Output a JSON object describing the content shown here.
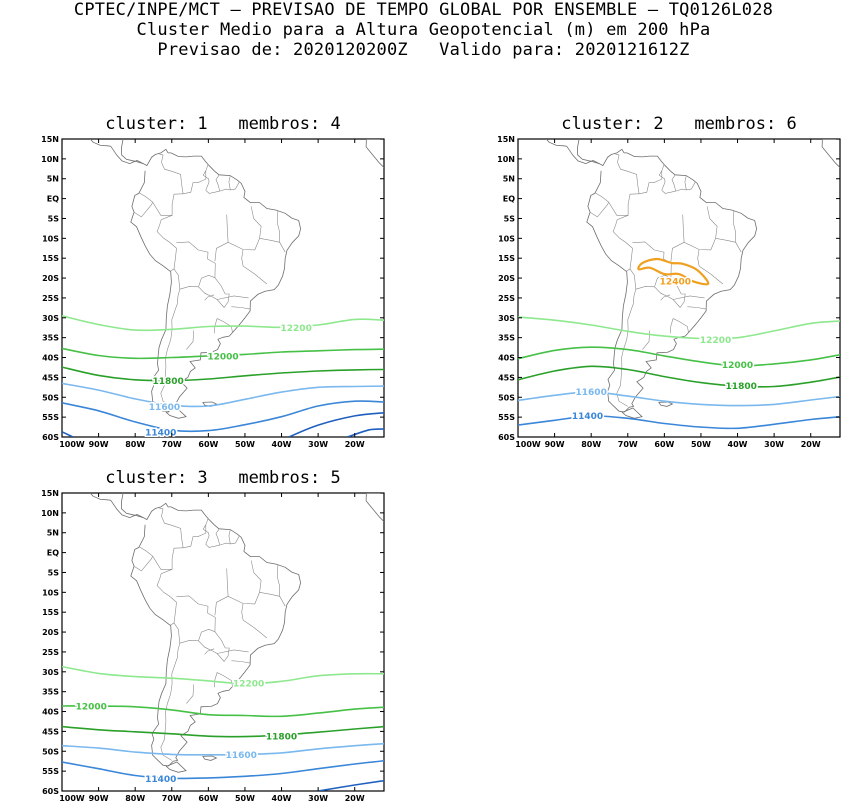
{
  "header": {
    "line1": "CPTEC/INPE/MCT – PREVISAO DE TEMPO GLOBAL POR ENSEMBLE – TQ0126L028",
    "line2": "Cluster Medio para a Altura Geopotencial (m) em 200 hPa",
    "line3": "Previsao de: 2020120200Z   Valido para: 2020121612Z"
  },
  "colors": {
    "c11400": "#3a86d8",
    "c11600": "#7ab8ee",
    "c11800": "#2aa02a",
    "c12000": "#46c046",
    "c12200": "#8ee88e",
    "c12400": "#f0a020",
    "cdark": "#1f5fbf",
    "coast": "#6e6e6e"
  },
  "axes": {
    "lon_ticks": [
      "100W",
      "90W",
      "80W",
      "70W",
      "60W",
      "50W",
      "40W",
      "30W",
      "20W"
    ],
    "lat_ticks": [
      "15N",
      "10N",
      "5N",
      "EQ",
      "5S",
      "10S",
      "15S",
      "20S",
      "25S",
      "30S",
      "35S",
      "40S",
      "45S",
      "50S",
      "55S",
      "60S"
    ]
  },
  "panels": [
    {
      "title": "cluster: 1   membros: 4",
      "contours": [
        {
          "level": 12200,
          "label": "12200",
          "color": "c12200",
          "pts": [
            [
              -100,
              -29.5
            ],
            [
              -90,
              -31.7
            ],
            [
              -80,
              -33.1
            ],
            [
              -70,
              -32.9
            ],
            [
              -60,
              -32.2
            ],
            [
              -50,
              -32.1
            ],
            [
              -40,
              -32.4
            ],
            [
              -30,
              -31.8
            ],
            [
              -20,
              -30.4
            ],
            [
              -12,
              -30.6
            ]
          ],
          "labelAt": [
            -36,
            -32.5
          ]
        },
        {
          "level": 12000,
          "label": "12000",
          "color": "c12000",
          "pts": [
            [
              -100,
              -37.7
            ],
            [
              -90,
              -39.5
            ],
            [
              -80,
              -40.2
            ],
            [
              -70,
              -40.0
            ],
            [
              -60,
              -39.6
            ],
            [
              -50,
              -39.2
            ],
            [
              -40,
              -38.6
            ],
            [
              -30,
              -38.3
            ],
            [
              -20,
              -38.0
            ],
            [
              -12,
              -37.9
            ]
          ],
          "labelAt": [
            -56,
            -39.6
          ]
        },
        {
          "level": 11800,
          "label": "11800",
          "color": "c11800",
          "pts": [
            [
              -100,
              -42.4
            ],
            [
              -90,
              -44.5
            ],
            [
              -80,
              -45.6
            ],
            [
              -70,
              -45.8
            ],
            [
              -60,
              -45.4
            ],
            [
              -50,
              -44.6
            ],
            [
              -40,
              -43.9
            ],
            [
              -30,
              -43.4
            ],
            [
              -20,
              -43.1
            ],
            [
              -12,
              -43.0
            ]
          ],
          "labelAt": [
            -71,
            -45.8
          ]
        },
        {
          "level": 11600,
          "label": "11600",
          "color": "c11600",
          "pts": [
            [
              -100,
              -46.5
            ],
            [
              -90,
              -48.2
            ],
            [
              -80,
              -50.4
            ],
            [
              -70,
              -52.0
            ],
            [
              -60,
              -52.2
            ],
            [
              -50,
              -50.5
            ],
            [
              -40,
              -48.7
            ],
            [
              -30,
              -47.5
            ],
            [
              -20,
              -47.3
            ],
            [
              -12,
              -47.2
            ]
          ],
          "labelAt": [
            -72,
            -52.3
          ]
        },
        {
          "level": 11400,
          "label": "11400",
          "color": "c11400",
          "pts": [
            [
              -100,
              -51.4
            ],
            [
              -90,
              -53.4
            ],
            [
              -80,
              -56.2
            ],
            [
              -70,
              -58.3
            ],
            [
              -60,
              -58.4
            ],
            [
              -50,
              -56.9
            ],
            [
              -40,
              -54.9
            ],
            [
              -30,
              -52.2
            ],
            [
              -20,
              -51.0
            ],
            [
              -12,
              -51.2
            ]
          ],
          "labelAt": [
            -73,
            -58.8
          ]
        },
        {
          "level": 11200,
          "label": "",
          "color": "cdark",
          "pts": [
            [
              -100,
              -58.7
            ],
            [
              -97,
              -60
            ]
          ],
          "labelAt": null
        },
        {
          "level": 11200,
          "label": "",
          "color": "cdark",
          "pts": [
            [
              -38,
              -60
            ],
            [
              -30,
              -57.0
            ],
            [
              -20,
              -54.7
            ],
            [
              -12,
              -53.9
            ]
          ],
          "labelAt": null
        },
        {
          "level": 11000,
          "label": "",
          "color": "cdark",
          "pts": [
            [
              -22,
              -60
            ],
            [
              -16,
              -58.2
            ],
            [
              -12,
              -58.0
            ]
          ],
          "labelAt": null
        }
      ]
    },
    {
      "title": "cluster: 2   membros: 6",
      "contours": [
        {
          "level": 12400,
          "label": "12400",
          "color": "c12400",
          "closed": true,
          "pts": [
            [
              -66,
              -16.2
            ],
            [
              -62,
              -15.2
            ],
            [
              -58,
              -16.2
            ],
            [
              -55,
              -16.4
            ],
            [
              -51,
              -18.0
            ],
            [
              -48,
              -21.4
            ],
            [
              -52,
              -20.9
            ],
            [
              -56,
              -19.0
            ],
            [
              -60,
              -19.0
            ],
            [
              -64,
              -17.4
            ],
            [
              -67,
              -17.8
            ]
          ],
          "labelAt": [
            -57,
            -20.8
          ]
        },
        {
          "level": 12200,
          "label": "12200",
          "color": "c12200",
          "pts": [
            [
              -100,
              -29.8
            ],
            [
              -90,
              -30.6
            ],
            [
              -80,
              -31.8
            ],
            [
              -70,
              -33.4
            ],
            [
              -60,
              -34.6
            ],
            [
              -50,
              -35.2
            ],
            [
              -40,
              -35.0
            ],
            [
              -30,
              -33.3
            ],
            [
              -20,
              -31.4
            ],
            [
              -12,
              -30.8
            ]
          ],
          "labelAt": [
            -46,
            -35.4
          ]
        },
        {
          "level": 12000,
          "label": "12000",
          "color": "c12000",
          "pts": [
            [
              -100,
              -40.3
            ],
            [
              -90,
              -38.2
            ],
            [
              -80,
              -37.4
            ],
            [
              -70,
              -38.0
            ],
            [
              -60,
              -39.6
            ],
            [
              -50,
              -41.1
            ],
            [
              -40,
              -42.1
            ],
            [
              -30,
              -41.6
            ],
            [
              -20,
              -40.6
            ],
            [
              -12,
              -39.3
            ]
          ],
          "labelAt": [
            -40,
            -41.8
          ]
        },
        {
          "level": 11800,
          "label": "11800",
          "color": "c11800",
          "pts": [
            [
              -100,
              -45.6
            ],
            [
              -90,
              -43.4
            ],
            [
              -80,
              -42.2
            ],
            [
              -70,
              -43.0
            ],
            [
              -60,
              -44.8
            ],
            [
              -50,
              -46.3
            ],
            [
              -40,
              -47.2
            ],
            [
              -30,
              -47.3
            ],
            [
              -20,
              -46.2
            ],
            [
              -12,
              -44.9
            ]
          ],
          "labelAt": [
            -39,
            -47.0
          ]
        },
        {
          "level": 11600,
          "label": "11600",
          "color": "c11600",
          "pts": [
            [
              -100,
              -50.8
            ],
            [
              -90,
              -49.5
            ],
            [
              -80,
              -48.7
            ],
            [
              -70,
              -49.7
            ],
            [
              -60,
              -51.0
            ],
            [
              -50,
              -51.8
            ],
            [
              -40,
              -52.1
            ],
            [
              -30,
              -51.8
            ],
            [
              -20,
              -50.7
            ],
            [
              -12,
              -49.8
            ]
          ],
          "labelAt": [
            -80,
            -48.6
          ]
        },
        {
          "level": 11400,
          "label": "11400",
          "color": "c11400",
          "pts": [
            [
              -100,
              -57.0
            ],
            [
              -90,
              -55.8
            ],
            [
              -80,
              -54.7
            ],
            [
              -70,
              -55.3
            ],
            [
              -60,
              -56.6
            ],
            [
              -50,
              -57.5
            ],
            [
              -40,
              -57.8
            ],
            [
              -30,
              -56.8
            ],
            [
              -20,
              -55.6
            ],
            [
              -12,
              -54.9
            ]
          ],
          "labelAt": [
            -81,
            -54.6
          ]
        }
      ]
    },
    {
      "title": "cluster: 3   membros: 5",
      "contours": [
        {
          "level": 12200,
          "label": "12200",
          "color": "c12200",
          "pts": [
            [
              -100,
              -28.7
            ],
            [
              -90,
              -30.4
            ],
            [
              -80,
              -31.2
            ],
            [
              -70,
              -31.6
            ],
            [
              -60,
              -32.3
            ],
            [
              -50,
              -33.0
            ],
            [
              -40,
              -32.4
            ],
            [
              -30,
              -31.0
            ],
            [
              -20,
              -30.5
            ],
            [
              -12,
              -30.5
            ]
          ],
          "labelAt": [
            -49,
            -32.8
          ]
        },
        {
          "level": 12000,
          "label": "12000",
          "color": "c12000",
          "pts": [
            [
              -100,
              -38.6
            ],
            [
              -90,
              -38.6
            ],
            [
              -80,
              -38.8
            ],
            [
              -70,
              -39.6
            ],
            [
              -60,
              -40.8
            ],
            [
              -50,
              -41.0
            ],
            [
              -40,
              -41.2
            ],
            [
              -30,
              -40.4
            ],
            [
              -20,
              -39.4
            ],
            [
              -12,
              -38.9
            ]
          ],
          "labelAt": [
            -92,
            -38.6
          ]
        },
        {
          "level": 11800,
          "label": "11800",
          "color": "c11800",
          "pts": [
            [
              -100,
              -43.8
            ],
            [
              -90,
              -44.6
            ],
            [
              -80,
              -45.1
            ],
            [
              -70,
              -45.6
            ],
            [
              -60,
              -46.2
            ],
            [
              -50,
              -46.3
            ],
            [
              -40,
              -45.9
            ],
            [
              -30,
              -45.2
            ],
            [
              -20,
              -44.4
            ],
            [
              -12,
              -43.8
            ]
          ],
          "labelAt": [
            -40,
            -46.2
          ]
        },
        {
          "level": 11600,
          "label": "11600",
          "color": "c11600",
          "pts": [
            [
              -100,
              -48.6
            ],
            [
              -90,
              -49.2
            ],
            [
              -80,
              -50.2
            ],
            [
              -70,
              -50.8
            ],
            [
              -60,
              -50.9
            ],
            [
              -50,
              -50.8
            ],
            [
              -40,
              -50.4
            ],
            [
              -30,
              -49.4
            ],
            [
              -20,
              -48.6
            ],
            [
              -12,
              -48.1
            ]
          ],
          "labelAt": [
            -51,
            -50.8
          ]
        },
        {
          "level": 11400,
          "label": "11400",
          "color": "c11400",
          "pts": [
            [
              -100,
              -52.7
            ],
            [
              -90,
              -54.4
            ],
            [
              -80,
              -56.1
            ],
            [
              -70,
              -56.8
            ],
            [
              -60,
              -56.7
            ],
            [
              -50,
              -56.3
            ],
            [
              -40,
              -55.6
            ],
            [
              -30,
              -54.4
            ],
            [
              -20,
              -53.2
            ],
            [
              -12,
              -52.4
            ]
          ],
          "labelAt": [
            -73,
            -56.9
          ]
        },
        {
          "level": 11200,
          "label": "",
          "color": "cdark",
          "pts": [
            [
              -30,
              -60
            ],
            [
              -20,
              -58.5
            ],
            [
              -12,
              -57.4
            ]
          ],
          "labelAt": null
        }
      ]
    }
  ]
}
